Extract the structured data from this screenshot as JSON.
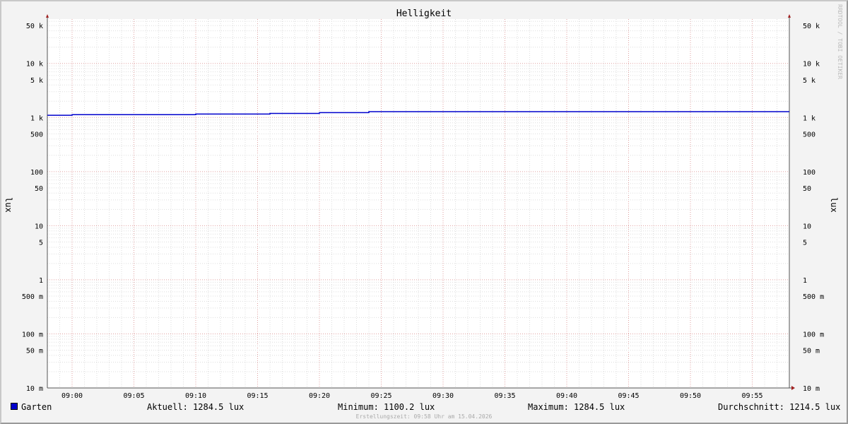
{
  "chart_data": {
    "type": "line",
    "title": "Helligkeit",
    "ylabel": "lux",
    "yscale": "log",
    "ylim": [
      0.01,
      66000
    ],
    "xlim": [
      "08:58",
      "09:58"
    ],
    "grid": true,
    "x_ticks": [
      "09:00",
      "09:05",
      "09:10",
      "09:15",
      "09:20",
      "09:25",
      "09:30",
      "09:35",
      "09:40",
      "09:45",
      "09:50",
      "09:55"
    ],
    "y_ticks": [
      {
        "v": 50000,
        "l": "50 k"
      },
      {
        "v": 10000,
        "l": "10 k"
      },
      {
        "v": 5000,
        "l": "5 k"
      },
      {
        "v": 1000,
        "l": "1 k"
      },
      {
        "v": 500,
        "l": "500"
      },
      {
        "v": 100,
        "l": "100"
      },
      {
        "v": 50,
        "l": "50"
      },
      {
        "v": 10,
        "l": "10"
      },
      {
        "v": 5,
        "l": "5"
      },
      {
        "v": 1,
        "l": "1"
      },
      {
        "v": 0.5,
        "l": "500 m"
      },
      {
        "v": 0.1,
        "l": "100 m"
      },
      {
        "v": 0.05,
        "l": "50 m"
      },
      {
        "v": 0.01,
        "l": "10 m"
      }
    ],
    "series": [
      {
        "name": "Garten",
        "color": "#0000cc",
        "steps": [
          [
            "08:58",
            1100.2
          ],
          [
            "09:00",
            1130
          ],
          [
            "09:10",
            1160
          ],
          [
            "09:16",
            1190
          ],
          [
            "09:20",
            1230
          ],
          [
            "09:24",
            1284.5
          ],
          [
            "09:58",
            1284.5
          ]
        ]
      }
    ],
    "legend": "bottom"
  },
  "legend": {
    "series": "Garten",
    "aktuell": "Aktuell: 1284.5 lux",
    "minimum": "Minimum: 1100.2 lux",
    "maximum": "Maximum: 1284.5 lux",
    "durchschnitt": "Durchschnitt: 1214.5 lux"
  },
  "footer": "Erstellungszeit: 09:58 Uhr am 15.04.2026",
  "watermark": "RRDTOOL / TOBI OETIKER"
}
